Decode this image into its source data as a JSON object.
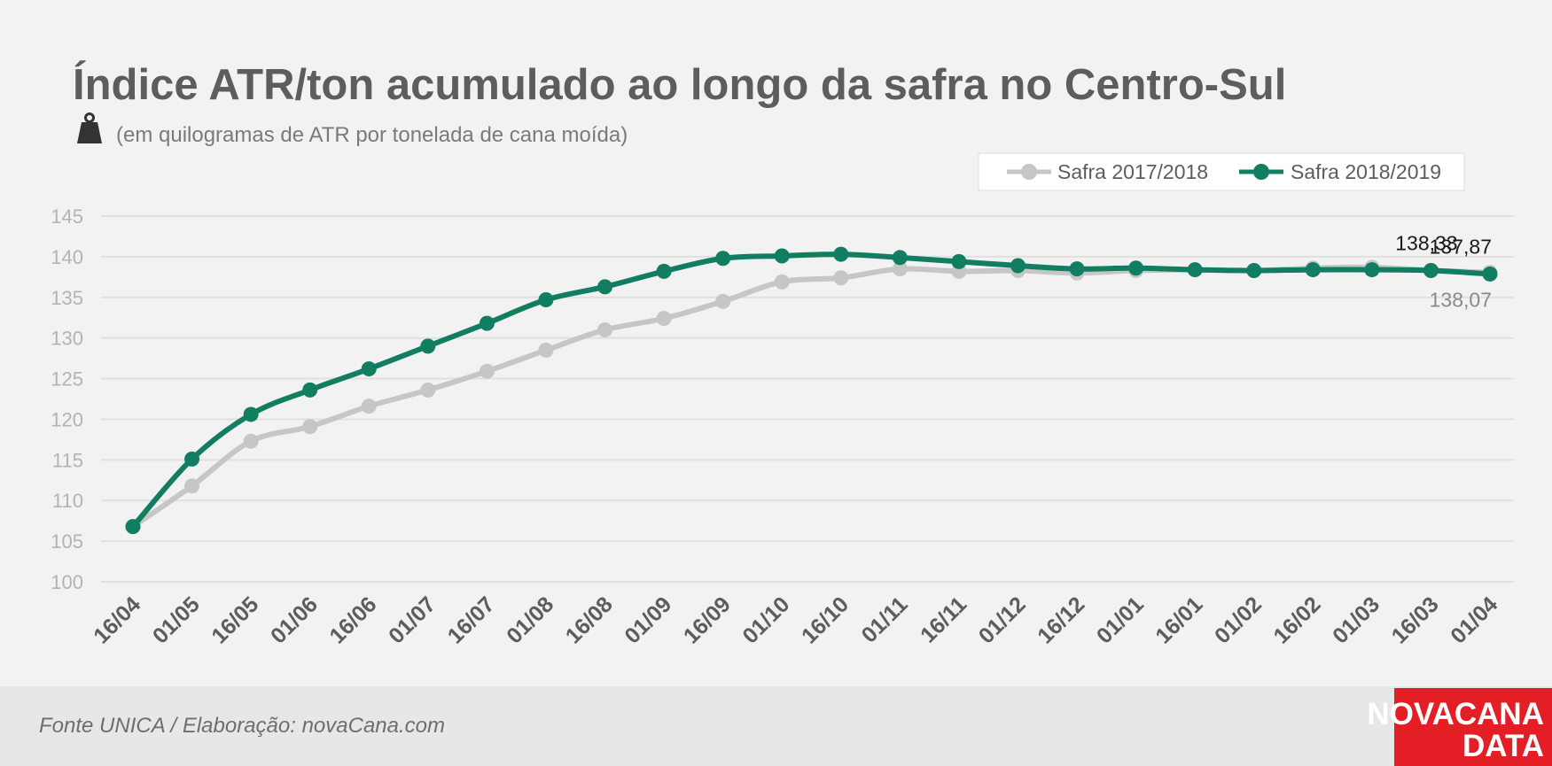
{
  "chart_data": {
    "type": "line",
    "title": "Índice ATR/ton acumulado ao longo da safra no Centro-Sul",
    "subtitle": "(em quilogramas de ATR por tonelada de cana moída)",
    "ylim": [
      100,
      145
    ],
    "yticks": [
      100,
      105,
      110,
      115,
      120,
      125,
      130,
      135,
      140,
      145
    ],
    "grid": true,
    "legend_position": "top-right",
    "categories": [
      "16/04",
      "01/05",
      "16/05",
      "01/06",
      "16/06",
      "01/07",
      "16/07",
      "01/08",
      "16/08",
      "01/09",
      "16/09",
      "01/10",
      "16/10",
      "01/11",
      "16/11",
      "01/12",
      "16/12",
      "01/01",
      "16/01",
      "01/02",
      "16/02",
      "01/03",
      "16/03",
      "01/04"
    ],
    "series": [
      {
        "name": "Safra 2017/2018",
        "color": "#c6c6c6",
        "values": [
          106.8,
          111.8,
          117.3,
          119.1,
          121.6,
          123.6,
          125.9,
          128.5,
          131.0,
          132.4,
          134.5,
          136.9,
          137.4,
          138.5,
          138.2,
          138.3,
          138.0,
          138.3,
          138.4,
          138.3,
          138.6,
          138.7,
          138.33,
          138.07
        ]
      },
      {
        "name": "Safra 2018/2019",
        "color": "#117d61",
        "values": [
          106.8,
          115.1,
          120.6,
          123.6,
          126.2,
          129.0,
          131.8,
          134.7,
          136.3,
          138.2,
          139.8,
          140.1,
          140.3,
          139.9,
          139.4,
          138.9,
          138.5,
          138.6,
          138.4,
          138.3,
          138.4,
          138.4,
          138.3,
          137.87
        ]
      }
    ],
    "annotations": [
      {
        "text": "138,33",
        "series": 1,
        "index": 22,
        "color": "#1a1a1a"
      },
      {
        "text": "137,87",
        "series": 1,
        "index": 23,
        "color": "#1a1a1a"
      },
      {
        "text": "138,07",
        "series": 0,
        "index": 23,
        "color": "#8a8a8a"
      }
    ]
  },
  "footer": {
    "source": "Fonte UNICA / Elaboração: novaCana.com",
    "logo_line1": "NOVACANA",
    "logo_line2": "DATA",
    "logo_color": "#e31e24"
  },
  "icons": {
    "subtitle_icon": "weight-icon"
  }
}
